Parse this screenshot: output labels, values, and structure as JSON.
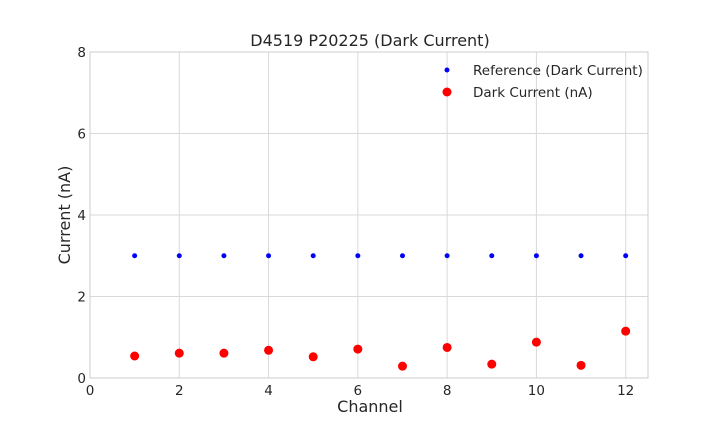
{
  "chart_data": {
    "type": "scatter",
    "title": "D4519 P20225 (Dark Current)",
    "xlabel": "Channel",
    "ylabel": "Current (nA)",
    "xlim": [
      0,
      12.5
    ],
    "ylim": [
      0,
      8
    ],
    "xticks": [
      0,
      2,
      4,
      6,
      8,
      10,
      12
    ],
    "yticks": [
      0,
      2,
      4,
      6,
      8
    ],
    "grid": true,
    "legend_position": "top-right",
    "series": [
      {
        "name": "Reference (Dark Current)",
        "color": "#0000ff",
        "marker": "small-dot",
        "x": [
          1,
          2,
          3,
          4,
          5,
          6,
          7,
          8,
          9,
          10,
          11,
          12
        ],
        "y": [
          3,
          3,
          3,
          3,
          3,
          3,
          3,
          3,
          3,
          3,
          3,
          3
        ]
      },
      {
        "name": "Dark Current (nA)",
        "color": "#ff0000",
        "marker": "large-dot",
        "x": [
          1,
          2,
          3,
          4,
          5,
          6,
          7,
          8,
          9,
          10,
          11,
          12
        ],
        "y": [
          0.54,
          0.61,
          0.61,
          0.68,
          0.52,
          0.71,
          0.29,
          0.75,
          0.34,
          0.88,
          0.31,
          1.15
        ]
      }
    ]
  }
}
